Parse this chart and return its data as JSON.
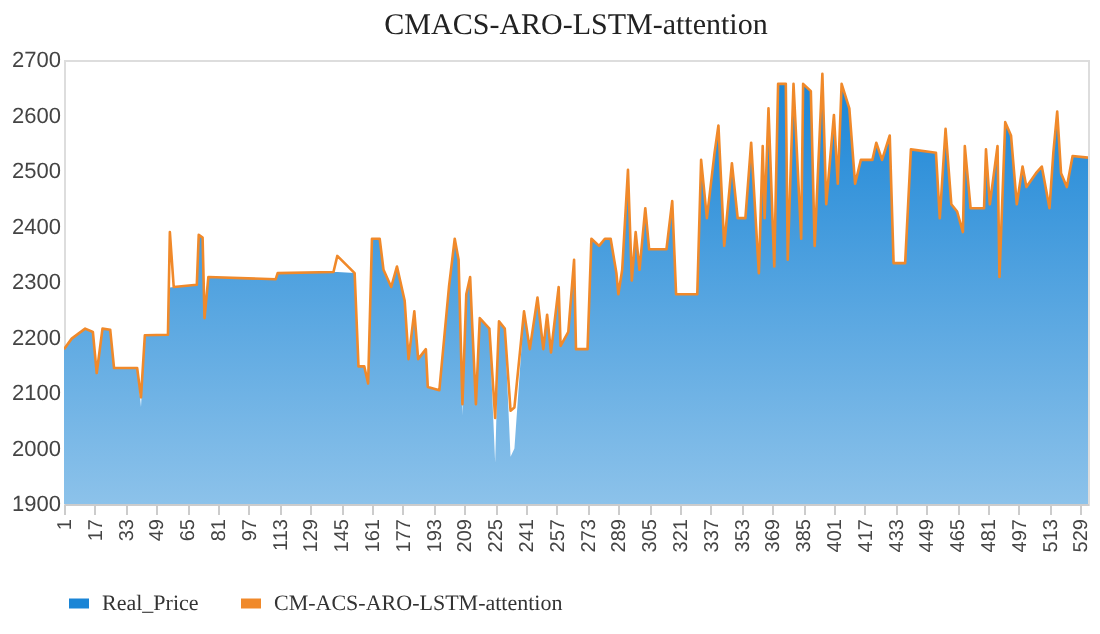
{
  "chart_data": {
    "type": "area",
    "title": "CMACS-ARO-LSTM-attention",
    "x": [
      1,
      5,
      12,
      16,
      18,
      21,
      25,
      27,
      39,
      41,
      43,
      55,
      56,
      58,
      70,
      71,
      73,
      74,
      76,
      111,
      112,
      141,
      143,
      152,
      154,
      157,
      159,
      161,
      165,
      167,
      171,
      174,
      178,
      180,
      183,
      185,
      189,
      190,
      196,
      201,
      204,
      206,
      208,
      210,
      212,
      213,
      215,
      217,
      222,
      225,
      227,
      230,
      233,
      235,
      240,
      243,
      247,
      250,
      252,
      254,
      258,
      259,
      263,
      266,
      267,
      273,
      275,
      279,
      282,
      285,
      288,
      289,
      291,
      294,
      296,
      298,
      300,
      303,
      305,
      314,
      317,
      319,
      330,
      332,
      335,
      339,
      341,
      344,
      348,
      351,
      355,
      358,
      362,
      364,
      365,
      367,
      370,
      372,
      376,
      377,
      380,
      384,
      385,
      389,
      391,
      395,
      397,
      401,
      403,
      405,
      409,
      412,
      415,
      421,
      423,
      426,
      430,
      432,
      438,
      441,
      454,
      456,
      459,
      462,
      465,
      468,
      469,
      472,
      479,
      480,
      482,
      486,
      487,
      490,
      493,
      496,
      499,
      501,
      506,
      509,
      513,
      515,
      517,
      519,
      522,
      525,
      533
    ],
    "series": [
      {
        "name": "Real_Price",
        "color": "#1a85d6",
        "values": [
          2179,
          2198,
          2216,
          2210,
          2136,
          2216,
          2214,
          2145,
          2145,
          2075,
          2204,
          2205,
          2290,
          2291,
          2295,
          2385,
          2380,
          2235,
          2309,
          2305,
          2316,
          2318,
          2318,
          2316,
          2148,
          2148,
          2117,
          2378,
          2378,
          2322,
          2291,
          2328,
          2266,
          2161,
          2247,
          2161,
          2179,
          2111,
          2105,
          2291,
          2378,
          2340,
          2060,
          2278,
          2309,
          2229,
          2080,
          2235,
          2216,
          1975,
          2229,
          2216,
          1985,
          2000,
          2247,
          2179,
          2272,
          2179,
          2241,
          2173,
          2291,
          2185,
          2210,
          2340,
          2179,
          2179,
          2378,
          2365,
          2378,
          2378,
          2316,
          2278,
          2322,
          2502,
          2303,
          2390,
          2322,
          2433,
          2359,
          2359,
          2446,
          2278,
          2278,
          2520,
          2415,
          2533,
          2582,
          2365,
          2514,
          2415,
          2415,
          2551,
          2316,
          2545,
          2415,
          2613,
          2328,
          2657,
          2657,
          2340,
          2657,
          2378,
          2657,
          2644,
          2365,
          2675,
          2440,
          2601,
          2477,
          2657,
          2613,
          2477,
          2520,
          2520,
          2551,
          2520,
          2564,
          2334,
          2334,
          2539,
          2533,
          2415,
          2576,
          2440,
          2427,
          2390,
          2545,
          2433,
          2433,
          2539,
          2440,
          2545,
          2309,
          2588,
          2564,
          2440,
          2508,
          2471,
          2496,
          2508,
          2433,
          2533,
          2607,
          2496,
          2471,
          2527,
          2524
        ]
      },
      {
        "name": "CM-ACS-ARO-LSTM-attention",
        "type": "line",
        "color": "#f0892a",
        "values": [
          2179,
          2198,
          2216,
          2210,
          2136,
          2216,
          2214,
          2145,
          2145,
          2092,
          2204,
          2205,
          2390,
          2291,
          2295,
          2385,
          2380,
          2235,
          2309,
          2305,
          2316,
          2318,
          2347,
          2316,
          2148,
          2148,
          2117,
          2378,
          2378,
          2322,
          2291,
          2328,
          2266,
          2161,
          2247,
          2161,
          2179,
          2111,
          2105,
          2291,
          2378,
          2340,
          2080,
          2278,
          2309,
          2229,
          2080,
          2235,
          2216,
          2055,
          2229,
          2216,
          2068,
          2074,
          2247,
          2179,
          2272,
          2179,
          2241,
          2173,
          2291,
          2185,
          2210,
          2340,
          2179,
          2179,
          2378,
          2365,
          2378,
          2378,
          2316,
          2278,
          2322,
          2502,
          2303,
          2390,
          2322,
          2433,
          2359,
          2359,
          2446,
          2278,
          2278,
          2520,
          2415,
          2533,
          2582,
          2365,
          2514,
          2415,
          2415,
          2551,
          2316,
          2545,
          2415,
          2613,
          2328,
          2657,
          2657,
          2340,
          2657,
          2378,
          2657,
          2644,
          2365,
          2675,
          2440,
          2601,
          2477,
          2657,
          2613,
          2477,
          2520,
          2520,
          2551,
          2520,
          2564,
          2334,
          2334,
          2539,
          2533,
          2415,
          2576,
          2440,
          2427,
          2390,
          2545,
          2433,
          2433,
          2539,
          2440,
          2545,
          2309,
          2588,
          2564,
          2440,
          2508,
          2471,
          2496,
          2508,
          2433,
          2533,
          2607,
          2496,
          2471,
          2527,
          2524
        ]
      }
    ],
    "xlim": [
      1,
      533
    ],
    "xticks": [
      1,
      17,
      33,
      49,
      65,
      81,
      97,
      113,
      129,
      145,
      161,
      177,
      193,
      209,
      225,
      241,
      257,
      273,
      289,
      305,
      321,
      337,
      353,
      369,
      385,
      401,
      417,
      433,
      449,
      465,
      481,
      497,
      513,
      529
    ],
    "ylim": [
      1900,
      2700
    ],
    "yticks": [
      1900,
      2000,
      2100,
      2200,
      2300,
      2400,
      2500,
      2600,
      2700
    ],
    "grid": false,
    "legend": "bottom"
  }
}
